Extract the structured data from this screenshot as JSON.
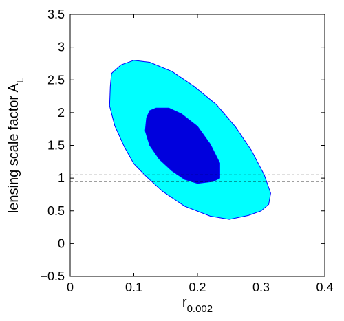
{
  "chart_data": {
    "type": "contour",
    "title": "",
    "xlabel": {
      "base": "r",
      "subscript": "0.002"
    },
    "ylabel": {
      "base": "lensing scale factor A",
      "subscript": "L"
    },
    "xlim": [
      0,
      0.4
    ],
    "ylim": [
      -0.5,
      3.5
    ],
    "xticks": [
      0,
      0.1,
      0.2,
      0.3,
      0.4
    ],
    "xtick_labels": [
      "0",
      "0.1",
      "0.2",
      "0.3",
      "0.4"
    ],
    "yticks": [
      -0.5,
      0,
      0.5,
      1,
      1.5,
      2,
      2.5,
      3,
      3.5
    ],
    "ytick_labels": [
      "−0.5",
      "0",
      "0.5",
      "1",
      "1.5",
      "2",
      "2.5",
      "3",
      "3.5"
    ],
    "grid": false,
    "legend": "none",
    "regions": [
      {
        "level": "95%",
        "color": "#00ffff",
        "edge_color": "#0000ff",
        "points": [
          [
            0.065,
            2.6
          ],
          [
            0.08,
            2.73
          ],
          [
            0.1,
            2.8
          ],
          [
            0.125,
            2.77
          ],
          [
            0.16,
            2.63
          ],
          [
            0.195,
            2.4
          ],
          [
            0.23,
            2.12
          ],
          [
            0.26,
            1.78
          ],
          [
            0.285,
            1.42
          ],
          [
            0.305,
            1.05
          ],
          [
            0.315,
            0.77
          ],
          [
            0.312,
            0.6
          ],
          [
            0.3,
            0.5
          ],
          [
            0.28,
            0.43
          ],
          [
            0.25,
            0.37
          ],
          [
            0.22,
            0.42
          ],
          [
            0.18,
            0.57
          ],
          [
            0.145,
            0.8
          ],
          [
            0.12,
            1.02
          ],
          [
            0.1,
            1.22
          ],
          [
            0.085,
            1.48
          ],
          [
            0.07,
            1.8
          ],
          [
            0.062,
            2.1
          ],
          [
            0.063,
            2.4
          ]
        ]
      },
      {
        "level": "68%",
        "color": "#0000dd",
        "edge_color": "#0000ff",
        "points": [
          [
            0.12,
            1.92
          ],
          [
            0.125,
            2.03
          ],
          [
            0.135,
            2.07
          ],
          [
            0.155,
            2.07
          ],
          [
            0.175,
            1.98
          ],
          [
            0.2,
            1.79
          ],
          [
            0.22,
            1.52
          ],
          [
            0.235,
            1.23
          ],
          [
            0.235,
            1.0
          ],
          [
            0.225,
            0.95
          ],
          [
            0.2,
            0.92
          ],
          [
            0.18,
            0.98
          ],
          [
            0.16,
            1.11
          ],
          [
            0.14,
            1.29
          ],
          [
            0.125,
            1.5
          ],
          [
            0.118,
            1.72
          ]
        ]
      }
    ],
    "reference_lines": [
      {
        "y": 1.05,
        "style": "dashed",
        "color": "#000000"
      },
      {
        "y": 0.95,
        "style": "dashed",
        "color": "#000000"
      }
    ]
  }
}
